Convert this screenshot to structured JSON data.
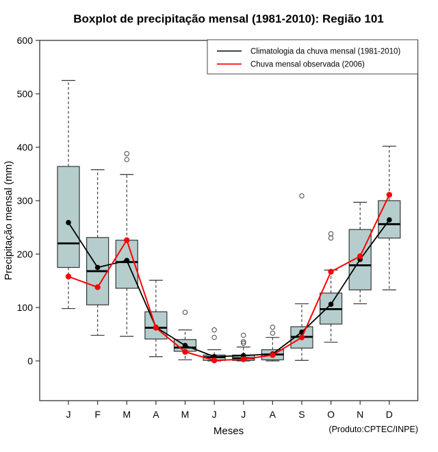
{
  "title": "Boxplot de precipitação mensal (1981-2010): Região 101",
  "axes": {
    "y_label": "Precipitação mensal (mm)",
    "x_label": "Meses",
    "y_ticks": [
      0,
      100,
      200,
      300,
      400,
      500,
      600
    ],
    "x_tick_labels": [
      "J",
      "F",
      "M",
      "A",
      "M",
      "J",
      "J",
      "A",
      "S",
      "O",
      "N",
      "D"
    ]
  },
  "legend": {
    "items": [
      {
        "label": "Climatologia da chuva mensal (1981-2010)",
        "color": "#000000"
      },
      {
        "label": "Chuva mensal observada (2006)",
        "color": "#ff0000"
      }
    ]
  },
  "footer": "(Produto:CPTEC/INPE)",
  "chart_data": {
    "type": "boxplot",
    "title": "Boxplot de precipitação mensal (1981-2010): Região 101",
    "xlabel": "Meses",
    "ylabel": "Precipitação mensal (mm)",
    "ylim": [
      0,
      600
    ],
    "grid": false,
    "legend_position": "top-right",
    "categories": [
      "J",
      "F",
      "M",
      "A",
      "M",
      "J",
      "J",
      "A",
      "S",
      "O",
      "N",
      "D"
    ],
    "boxes": [
      {
        "month": "J",
        "whisker_low": 98,
        "q1": 175,
        "median": 220,
        "q3": 364,
        "whisker_high": 525,
        "outliers": []
      },
      {
        "month": "F",
        "whisker_low": 48,
        "q1": 105,
        "median": 168,
        "q3": 231,
        "whisker_high": 358,
        "outliers": []
      },
      {
        "month": "M",
        "whisker_low": 46,
        "q1": 136,
        "median": 185,
        "q3": 226,
        "whisker_high": 349,
        "outliers": [
          377,
          388
        ]
      },
      {
        "month": "A",
        "whisker_low": 8,
        "q1": 41,
        "median": 62,
        "q3": 92,
        "whisker_high": 151,
        "outliers": []
      },
      {
        "month": "M",
        "whisker_low": 2,
        "q1": 18,
        "median": 25,
        "q3": 40,
        "whisker_high": 58,
        "outliers": [
          91
        ]
      },
      {
        "month": "J",
        "whisker_low": 0,
        "q1": 1,
        "median": 7,
        "q3": 11,
        "whisker_high": 21,
        "outliers": [
          44,
          58
        ]
      },
      {
        "month": "J",
        "whisker_low": 0,
        "q1": 1,
        "median": 5,
        "q3": 11,
        "whisker_high": 26,
        "outliers": [
          33,
          36,
          48
        ]
      },
      {
        "month": "A",
        "whisker_low": 0,
        "q1": 2,
        "median": 12,
        "q3": 21,
        "whisker_high": 44,
        "outliers": [
          52,
          63
        ]
      },
      {
        "month": "S",
        "whisker_low": 1,
        "q1": 24,
        "median": 45,
        "q3": 64,
        "whisker_high": 107,
        "outliers": [
          309
        ]
      },
      {
        "month": "O",
        "whisker_low": 35,
        "q1": 69,
        "median": 97,
        "q3": 127,
        "whisker_high": 170,
        "outliers": [
          230,
          238
        ]
      },
      {
        "month": "N",
        "whisker_low": 107,
        "q1": 133,
        "median": 179,
        "q3": 246,
        "whisker_high": 297,
        "outliers": []
      },
      {
        "month": "D",
        "whisker_low": 133,
        "q1": 230,
        "median": 256,
        "q3": 300,
        "whisker_high": 402,
        "outliers": []
      }
    ],
    "series": [
      {
        "name": "Climatologia da chuva mensal (1981-2010)",
        "color": "#000000",
        "values": [
          259,
          175,
          188,
          63,
          29,
          8,
          10,
          13,
          54,
          106,
          190,
          264
        ]
      },
      {
        "name": "Chuva mensal observada (2006)",
        "color": "#ff0000",
        "values": [
          158,
          138,
          226,
          62,
          17,
          1,
          3,
          11,
          44,
          167,
          196,
          311
        ]
      }
    ],
    "colors": {
      "box_fill": "#b5cecd",
      "box_border": "#333333",
      "frame": "#333333"
    }
  }
}
